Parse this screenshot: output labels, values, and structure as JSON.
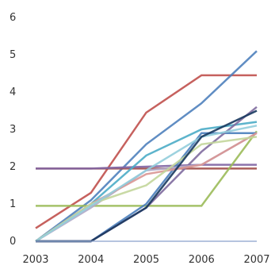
{
  "chart_data": {
    "type": "line",
    "title": "",
    "xlabel": "",
    "ylabel": "",
    "x": [
      "2003",
      "2004",
      "2005",
      "2006",
      "2007"
    ],
    "xlim": [
      2003,
      2007
    ],
    "ylim": [
      0,
      6
    ],
    "y_ticks": [
      0,
      1,
      2,
      3,
      4,
      5,
      6
    ],
    "grid": false,
    "legend": "none",
    "series": [
      {
        "color": "#c0504d",
        "values": [
          0.35,
          1.3,
          3.45,
          4.45,
          4.45
        ]
      },
      {
        "color": "#4f81bd",
        "values": [
          0,
          1.1,
          2.6,
          3.7,
          5.1
        ]
      },
      {
        "color": "#a04d48",
        "values": [
          1.95,
          1.95,
          1.95,
          1.95,
          1.95
        ]
      },
      {
        "color": "#8064a2",
        "values": [
          1.95,
          1.95,
          2.0,
          2.05,
          2.05
        ]
      },
      {
        "color": "#9bbb59",
        "values": [
          0.95,
          0.95,
          0.95,
          0.95,
          2.95
        ]
      },
      {
        "color": "#4bacc6",
        "values": [
          0,
          1.0,
          2.3,
          3.0,
          3.2
        ]
      },
      {
        "color": "#4a7ebb",
        "values": [
          0,
          0,
          1.0,
          2.9,
          2.9
        ]
      },
      {
        "color": "#7f6b9e",
        "values": [
          0,
          0,
          0.9,
          2.4,
          3.6
        ]
      },
      {
        "color": "#b0a8c8",
        "values": [
          0,
          0.9,
          1.9,
          2.05,
          2.9
        ]
      },
      {
        "color": "#d99694",
        "values": [
          0,
          1.0,
          1.8,
          2.05,
          2.9
        ]
      },
      {
        "color": "#c3d69b",
        "values": [
          0,
          1.0,
          1.5,
          2.6,
          2.8
        ]
      },
      {
        "color": "#92cddc",
        "values": [
          0,
          0.95,
          1.9,
          2.8,
          3.1
        ]
      },
      {
        "color": "#17375e",
        "values": [
          0,
          0,
          0.9,
          2.8,
          3.5
        ]
      },
      {
        "color": "#93a9cf",
        "values": [
          0,
          0,
          0,
          0,
          0
        ]
      }
    ]
  }
}
